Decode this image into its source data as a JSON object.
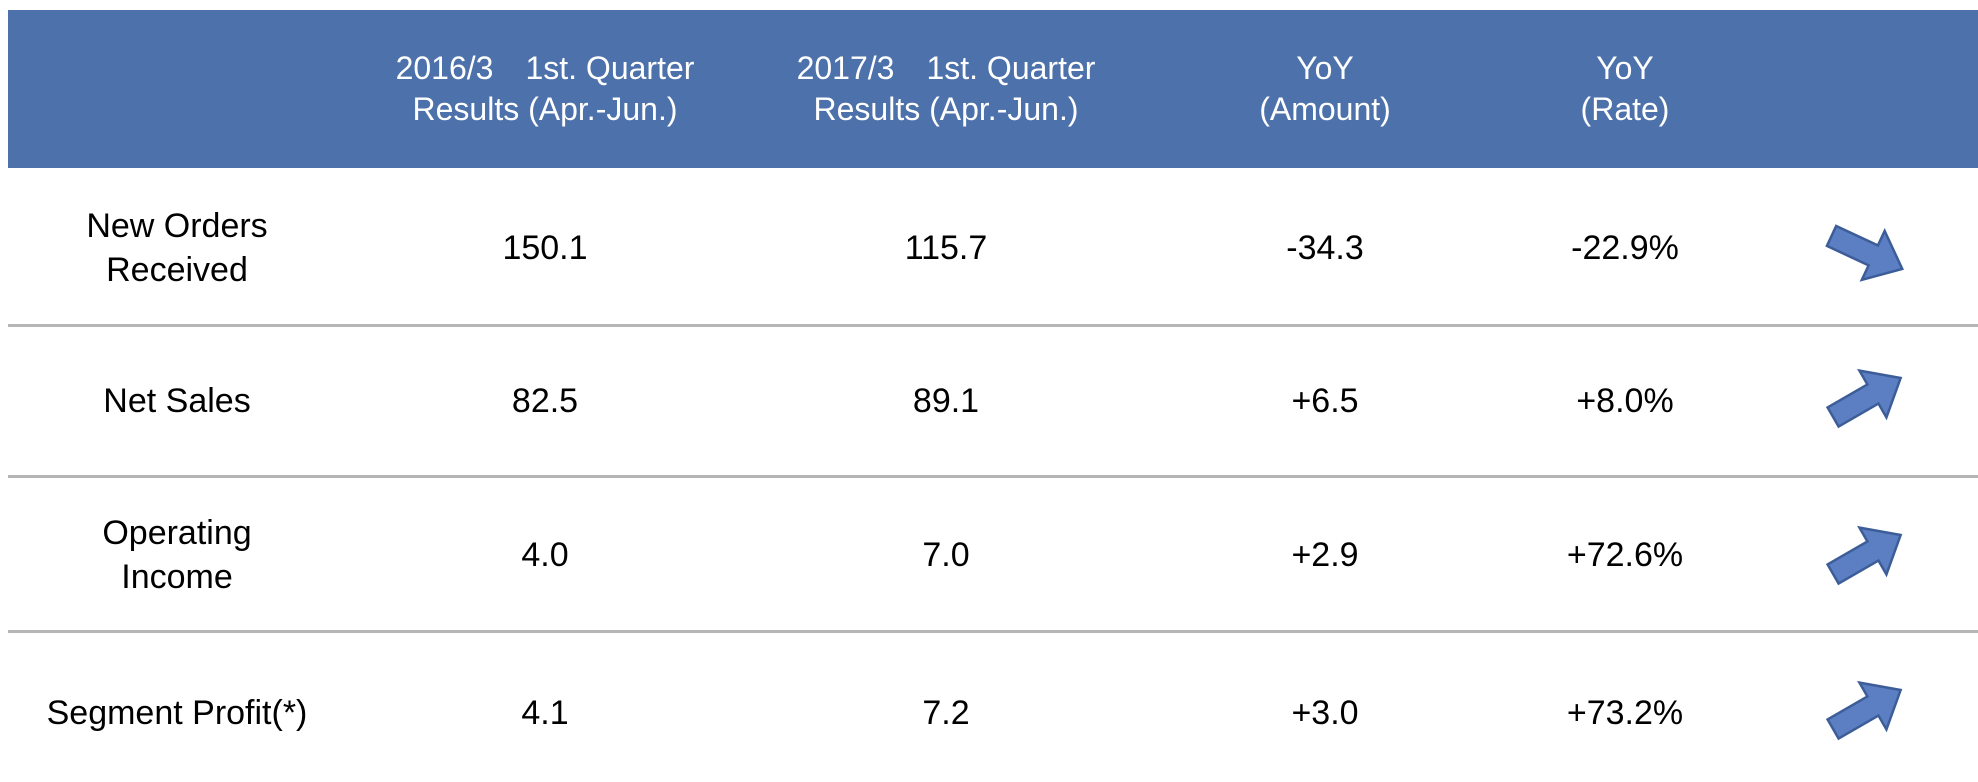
{
  "table": {
    "columns": [
      [
        "2016/3　1st. Quarter",
        "Results (Apr.-Jun.)"
      ],
      [
        "2017/3　1st. Quarter",
        "Results (Apr.-Jun.)"
      ],
      [
        "YoY",
        "(Amount)"
      ],
      [
        "YoY",
        "(Rate)"
      ]
    ],
    "rows": [
      {
        "label": [
          "New Orders",
          "Received"
        ],
        "cells": [
          "150.1",
          "115.7",
          "-34.3",
          "-22.9%"
        ]
      },
      {
        "label": [
          "Net Sales"
        ],
        "cells": [
          "82.5",
          "89.1",
          "+6.5",
          "+8.0%"
        ]
      },
      {
        "label": [
          "Operating",
          "Income"
        ],
        "cells": [
          "4.0",
          "7.0",
          "+2.9",
          "+72.6%"
        ]
      },
      {
        "label": [
          "Segment Profit(*)"
        ],
        "cells": [
          "4.1",
          "7.2",
          "+3.0",
          "+73.2%"
        ]
      }
    ]
  }
}
